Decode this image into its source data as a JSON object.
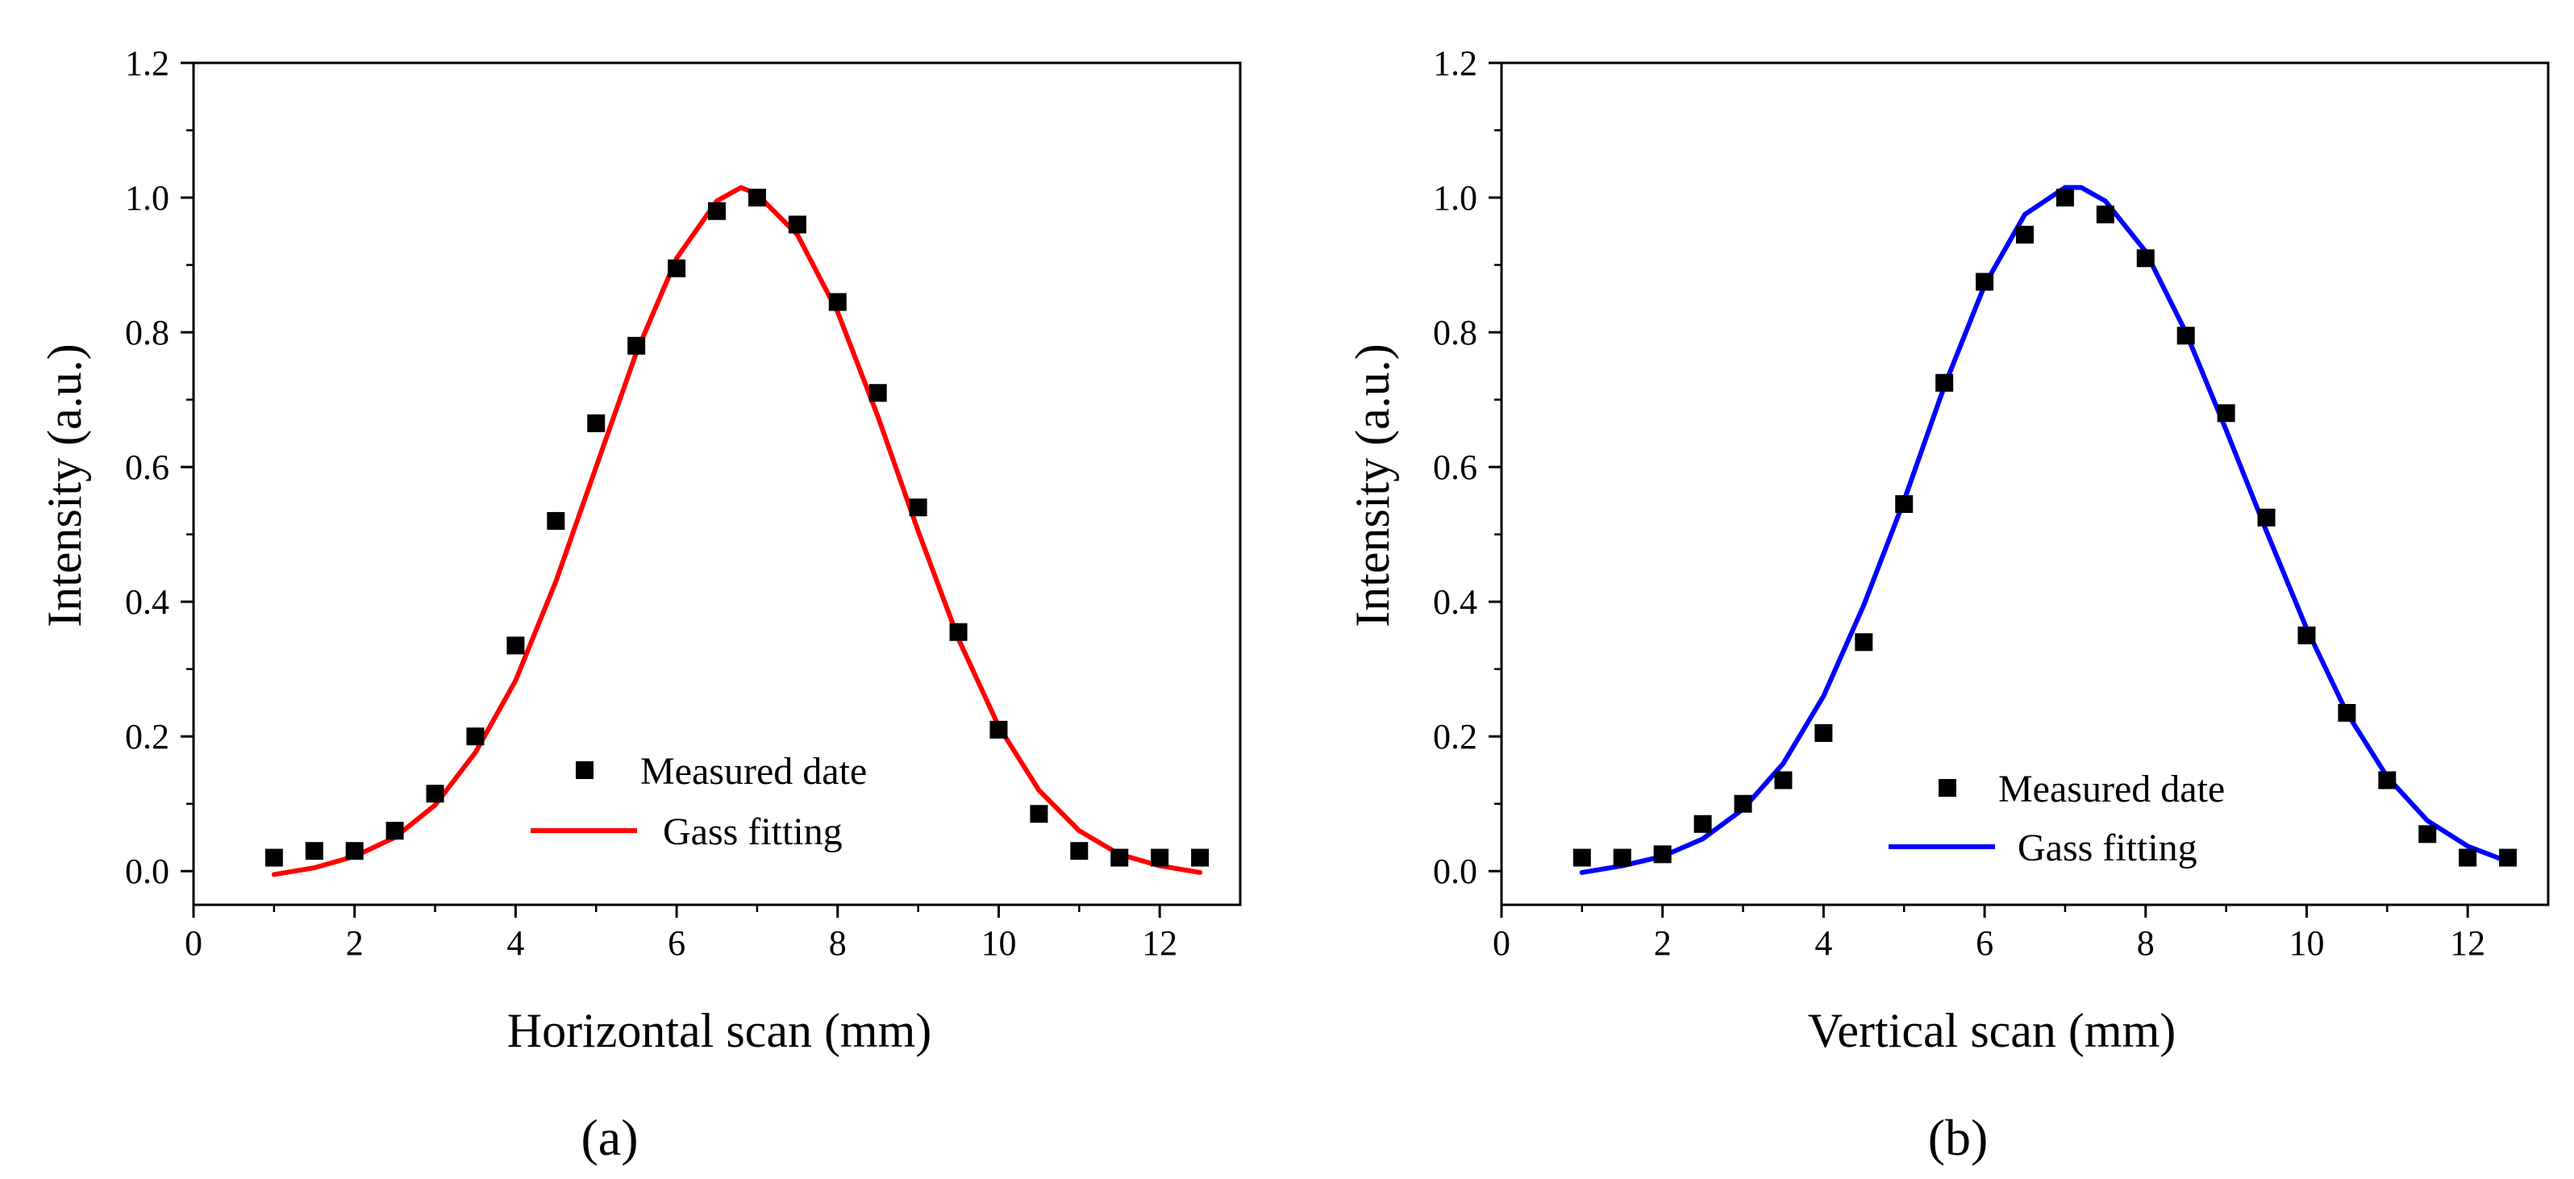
{
  "chart_data": [
    {
      "type": "scatter",
      "panel_label": "(a)",
      "xlabel": "Horizontal scan (mm)",
      "ylabel": "Intensity (a.u.)",
      "xlim": [
        0,
        13
      ],
      "ylim": [
        -0.05,
        1.2
      ],
      "xticks": [
        0,
        2,
        4,
        6,
        8,
        10,
        12
      ],
      "xtick_labels": [
        "0",
        "2",
        "4",
        "6",
        "8",
        "10",
        "12"
      ],
      "yticks": [
        0.0,
        0.2,
        0.4,
        0.6,
        0.8,
        1.0,
        1.2
      ],
      "ytick_labels": [
        "0.0",
        "0.2",
        "0.4",
        "0.6",
        "0.8",
        "1.0",
        "1.2"
      ],
      "grid": false,
      "legend_position": "lower-center",
      "series": [
        {
          "name": "Measured date",
          "kind": "markers",
          "marker": "square",
          "color": "#000000",
          "x": [
            1,
            1.5,
            2,
            2.5,
            3,
            3.5,
            4,
            4.5,
            5,
            5.5,
            6,
            6.5,
            7,
            7.5,
            8,
            8.5,
            9,
            9.5,
            10,
            10.5,
            11,
            11.5,
            12,
            12.5
          ],
          "y": [
            0.02,
            0.03,
            0.03,
            0.06,
            0.115,
            0.2,
            0.335,
            0.52,
            0.665,
            0.78,
            0.895,
            0.98,
            1.0,
            0.96,
            0.845,
            0.71,
            0.54,
            0.355,
            0.21,
            0.085,
            0.03,
            0.02,
            0.02,
            0.02
          ]
        },
        {
          "name": "Gass fitting",
          "kind": "line",
          "color": "#ff0000",
          "x": [
            1.0,
            1.5,
            2.0,
            2.5,
            3.0,
            3.5,
            4.0,
            4.5,
            5.0,
            5.5,
            6.0,
            6.5,
            6.8,
            7.0,
            7.5,
            8.0,
            8.5,
            9.0,
            9.5,
            10.0,
            10.5,
            11.0,
            11.5,
            12.0,
            12.5
          ],
          "y": [
            -0.005,
            0.005,
            0.022,
            0.05,
            0.098,
            0.176,
            0.283,
            0.43,
            0.6,
            0.77,
            0.91,
            0.995,
            1.015,
            1.005,
            0.945,
            0.83,
            0.675,
            0.505,
            0.345,
            0.215,
            0.12,
            0.06,
            0.025,
            0.008,
            -0.002
          ]
        }
      ]
    },
    {
      "type": "scatter",
      "panel_label": "(b)",
      "xlabel": "Vertical scan (mm)",
      "ylabel": "Intensity (a.u.)",
      "xlim": [
        0,
        13
      ],
      "ylim": [
        -0.05,
        1.2
      ],
      "xticks": [
        0,
        2,
        4,
        6,
        8,
        10,
        12
      ],
      "xtick_labels": [
        "0",
        "2",
        "4",
        "6",
        "8",
        "10",
        "12"
      ],
      "yticks": [
        0.0,
        0.2,
        0.4,
        0.6,
        0.8,
        1.0,
        1.2
      ],
      "ytick_labels": [
        "0.0",
        "0.2",
        "0.4",
        "0.6",
        "0.8",
        "1.0",
        "1.2"
      ],
      "grid": false,
      "legend_position": "lower-center",
      "series": [
        {
          "name": "Measured date",
          "kind": "markers",
          "marker": "square",
          "color": "#000000",
          "x": [
            1,
            1.5,
            2,
            2.5,
            3,
            3.5,
            4,
            4.5,
            5,
            5.5,
            6,
            6.5,
            7,
            7.5,
            8,
            8.5,
            9,
            9.5,
            10,
            10.5,
            11,
            11.5,
            12,
            12.5
          ],
          "y": [
            0.02,
            0.02,
            0.025,
            0.07,
            0.1,
            0.135,
            0.205,
            0.34,
            0.545,
            0.725,
            0.875,
            0.945,
            1.0,
            0.975,
            0.91,
            0.795,
            0.68,
            0.525,
            0.35,
            0.235,
            0.135,
            0.055,
            0.02,
            0.02
          ]
        },
        {
          "name": "Gass fitting",
          "kind": "line",
          "color": "#0000ff",
          "x": [
            1.0,
            1.5,
            2.0,
            2.5,
            3.0,
            3.5,
            4.0,
            4.5,
            5.0,
            5.5,
            6.0,
            6.5,
            7.0,
            7.2,
            7.5,
            8.0,
            8.5,
            9.0,
            9.5,
            10.0,
            10.5,
            11.0,
            11.5,
            12.0,
            12.5
          ],
          "y": [
            -0.002,
            0.008,
            0.022,
            0.048,
            0.092,
            0.16,
            0.26,
            0.395,
            0.55,
            0.72,
            0.87,
            0.975,
            1.015,
            1.015,
            0.995,
            0.92,
            0.8,
            0.655,
            0.505,
            0.36,
            0.235,
            0.14,
            0.075,
            0.037,
            0.014
          ]
        }
      ]
    }
  ]
}
